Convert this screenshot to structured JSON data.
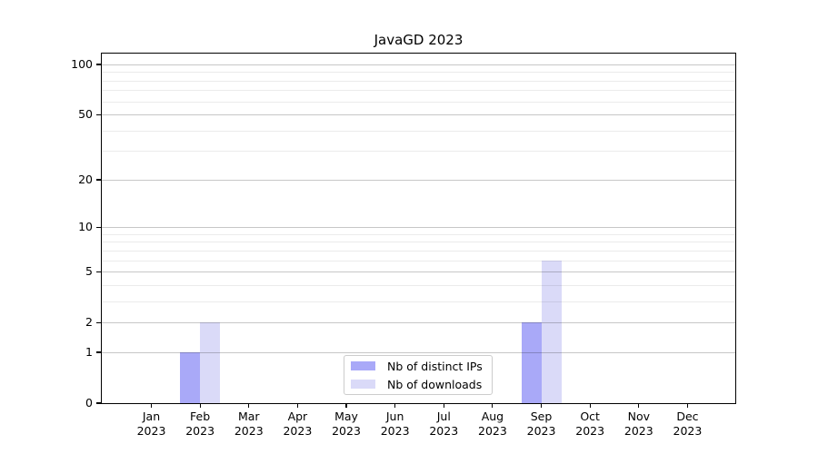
{
  "chart_data": {
    "type": "bar",
    "title": "JavaGD 2023",
    "categories": [
      "Jan",
      "Feb",
      "Mar",
      "Apr",
      "May",
      "Jun",
      "Jul",
      "Aug",
      "Sep",
      "Oct",
      "Nov",
      "Dec"
    ],
    "year_label": "2023",
    "series": [
      {
        "name": "Nb of distinct IPs",
        "color": "#a9a9f8",
        "values": [
          0,
          1,
          0,
          0,
          0,
          0,
          0,
          0,
          2,
          0,
          0,
          0
        ]
      },
      {
        "name": "Nb of downloads",
        "color": "#dadaf8",
        "values": [
          0,
          2,
          0,
          0,
          0,
          0,
          0,
          0,
          6,
          0,
          0,
          0
        ]
      }
    ],
    "y_axis": {
      "scale": "log1p",
      "major_ticks": [
        0,
        1,
        2,
        5,
        10,
        20,
        50,
        100
      ],
      "minor_gridlines": [
        3,
        4,
        6,
        7,
        8,
        9,
        30,
        40,
        60,
        70,
        80,
        90
      ],
      "range": [
        0,
        117
      ]
    },
    "x_axis": {
      "label_line2": "2023"
    },
    "grid": true,
    "legend_position": "inside-bottom-center",
    "colors": {
      "grid_major": "rgba(0,0,0,0.22)",
      "grid_minor": "rgba(0,0,0,0.08)",
      "axis": "#000000",
      "background": "#ffffff"
    }
  }
}
